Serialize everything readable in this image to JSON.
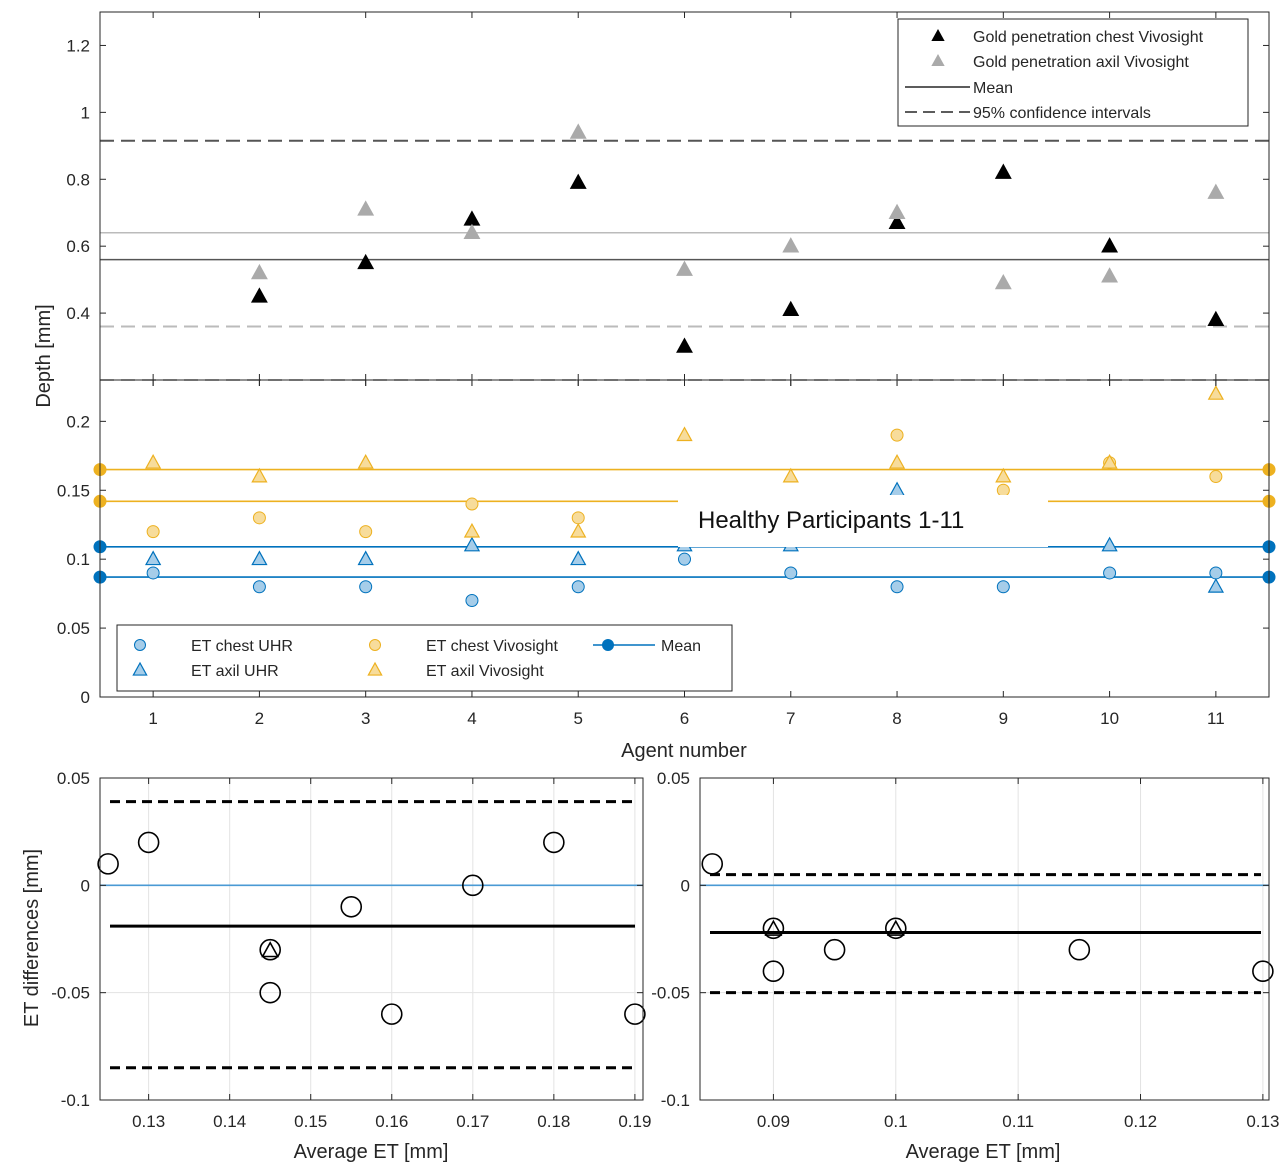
{
  "chart_data": [
    {
      "id": "top-upper",
      "type": "scatter",
      "ylabel": "Depth [mm]",
      "xlim": [
        0.5,
        11.5
      ],
      "ylim": [
        0.2,
        1.3
      ],
      "yticks": [
        0.4,
        0.6,
        0.8,
        1,
        1.2
      ],
      "grid": false,
      "legend": {
        "position": "top-right",
        "entries": [
          "Gold penetration chest Vivosight",
          "Gold penetration axil Vivosight",
          "Mean",
          "95% confidence intervals"
        ]
      },
      "series": [
        {
          "name": "Gold penetration chest Vivosight",
          "marker": "triangle",
          "color": "#000000",
          "x": [
            2,
            3,
            4,
            5,
            6,
            7,
            8,
            9,
            10,
            11
          ],
          "y": [
            0.45,
            0.55,
            0.68,
            0.79,
            0.3,
            0.41,
            0.67,
            0.82,
            0.6,
            0.38
          ]
        },
        {
          "name": "Gold penetration axil Vivosight",
          "marker": "triangle",
          "color": "#aaaaaa",
          "x": [
            2,
            3,
            4,
            5,
            6,
            7,
            8,
            9,
            10,
            11
          ],
          "y": [
            0.52,
            0.71,
            0.64,
            0.94,
            0.53,
            0.6,
            0.7,
            0.49,
            0.51,
            0.76
          ]
        }
      ],
      "hlines": [
        {
          "kind": "mean",
          "color": "#555555",
          "y": 0.56
        },
        {
          "kind": "mean",
          "color": "#bbbbbb",
          "y": 0.64
        },
        {
          "kind": "ci",
          "color": "#555555",
          "y": 0.915
        },
        {
          "kind": "ci",
          "color": "#555555",
          "y": 0.2
        },
        {
          "kind": "ci",
          "color": "#bbbbbb",
          "y": 0.36
        },
        {
          "kind": "ci",
          "color": "#bbbbbb",
          "y": 0.2
        }
      ]
    },
    {
      "id": "top-lower",
      "type": "scatter",
      "xlabel": "Agent number",
      "xlim": [
        0.5,
        11.5
      ],
      "ylim": [
        0,
        0.23
      ],
      "xticks": [
        1,
        2,
        3,
        4,
        5,
        6,
        7,
        8,
        9,
        10,
        11
      ],
      "yticks": [
        0,
        0.05,
        0.1,
        0.15,
        0.2
      ],
      "grid": false,
      "legend": {
        "position": "bottom-left",
        "entries": [
          "ET chest UHR",
          "ET axil UHR",
          "ET chest Vivosight",
          "ET axil Vivosight",
          "Mean"
        ]
      },
      "series": [
        {
          "name": "ET chest UHR",
          "marker": "circle",
          "color": "#0072bd",
          "x": [
            1,
            2,
            3,
            4,
            5,
            6,
            7,
            8,
            9,
            10,
            11
          ],
          "y": [
            0.09,
            0.08,
            0.08,
            0.07,
            0.08,
            0.1,
            0.09,
            0.08,
            0.08,
            0.09,
            0.09
          ]
        },
        {
          "name": "ET axil UHR",
          "marker": "triangle",
          "color": "#0072bd",
          "x": [
            1,
            2,
            3,
            4,
            5,
            6,
            7,
            8,
            9,
            10,
            11
          ],
          "y": [
            0.1,
            0.1,
            0.1,
            0.11,
            0.1,
            0.11,
            0.11,
            0.15,
            0.12,
            0.11,
            0.08
          ]
        },
        {
          "name": "ET chest Vivosight",
          "marker": "circle",
          "color": "#edb120",
          "x": [
            1,
            2,
            3,
            4,
            5,
            6,
            7,
            8,
            9,
            10,
            11
          ],
          "y": [
            0.12,
            0.13,
            0.12,
            0.14,
            0.13,
            0.12,
            0.12,
            0.19,
            0.15,
            0.17,
            0.16
          ]
        },
        {
          "name": "ET axil Vivosight",
          "marker": "triangle",
          "color": "#edb120",
          "x": [
            1,
            2,
            3,
            4,
            5,
            6,
            7,
            8,
            9,
            10,
            11
          ],
          "y": [
            0.17,
            0.16,
            0.17,
            0.12,
            0.12,
            0.19,
            0.16,
            0.17,
            0.16,
            0.17,
            0.22
          ]
        }
      ],
      "hlines": [
        {
          "kind": "mean",
          "color": "#edb120",
          "y": 0.165
        },
        {
          "kind": "mean",
          "color": "#edb120",
          "y": 0.142
        },
        {
          "kind": "mean",
          "color": "#0072bd",
          "y": 0.109
        },
        {
          "kind": "mean",
          "color": "#0072bd",
          "y": 0.087
        }
      ]
    },
    {
      "id": "bottom-left",
      "type": "scatter",
      "xlabel": "Average ET [mm]",
      "ylabel": "ET differences [mm]",
      "xlim": [
        0.124,
        0.191
      ],
      "ylim": [
        -0.1,
        0.05
      ],
      "xticks": [
        0.13,
        0.14,
        0.15,
        0.16,
        0.17,
        0.18,
        0.19
      ],
      "yticks": [
        -0.1,
        -0.05,
        0,
        0.05
      ],
      "grid": true,
      "circles": [
        [
          0.125,
          0.01
        ],
        [
          0.13,
          0.02
        ],
        [
          0.145,
          -0.03
        ],
        [
          0.145,
          -0.05
        ],
        [
          0.155,
          -0.01
        ],
        [
          0.16,
          -0.06
        ],
        [
          0.17,
          0.0
        ],
        [
          0.18,
          0.02
        ],
        [
          0.19,
          -0.06
        ]
      ],
      "triangles": [
        [
          0.145,
          -0.03
        ]
      ],
      "zero_line": 0,
      "mean": -0.019,
      "ci": [
        0.039,
        -0.085
      ]
    },
    {
      "id": "bottom-right",
      "type": "scatter",
      "xlabel": "Average ET [mm]",
      "xlim": [
        0.084,
        0.1305
      ],
      "ylim": [
        -0.1,
        0.05
      ],
      "xticks": [
        0.09,
        0.1,
        0.11,
        0.12,
        0.13
      ],
      "yticks": [
        -0.1,
        -0.05,
        0,
        0.05
      ],
      "grid": true,
      "circles": [
        [
          0.085,
          0.01
        ],
        [
          0.09,
          -0.02
        ],
        [
          0.09,
          -0.04
        ],
        [
          0.095,
          -0.03
        ],
        [
          0.1,
          -0.02
        ],
        [
          0.115,
          -0.03
        ],
        [
          0.13,
          -0.04
        ]
      ],
      "triangles": [
        [
          0.09,
          -0.02
        ],
        [
          0.1,
          -0.02
        ]
      ],
      "zero_line": 0,
      "mean": -0.022,
      "ci": [
        0.005,
        -0.05
      ]
    }
  ],
  "annotation": "Healthy Participants 1-11"
}
